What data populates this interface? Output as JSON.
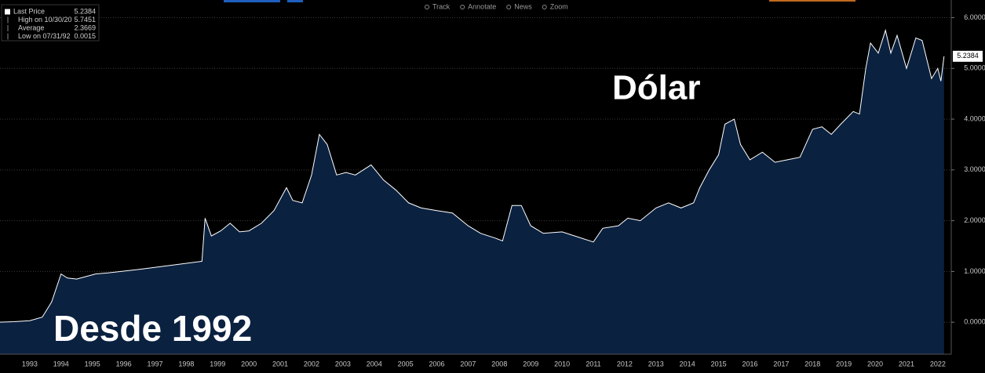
{
  "chart_data": {
    "type": "area",
    "toolbar": [
      "Track",
      "Annotate",
      "News",
      "Zoom"
    ],
    "stats": [
      {
        "label": "Last Price",
        "value": "5.2384"
      },
      {
        "label": "High on 10/30/20",
        "value": "5.7451"
      },
      {
        "label": "Average",
        "value": "2.3669"
      },
      {
        "label": "Low on 07/31/92",
        "value": "0.0015"
      }
    ],
    "annotations": [
      "Dólar",
      "Desde 1992"
    ],
    "series": [
      {
        "color": "#ffffff",
        "fill": "#0b2140",
        "x": [
          1992.55,
          1993.0,
          1993.5,
          1993.9,
          1994.2,
          1994.5,
          1994.7,
          1995.0,
          1995.3,
          1995.6,
          1996.0,
          1997.0,
          1998.0,
          1999.0,
          1999.1,
          1999.3,
          1999.6,
          1999.9,
          2000.2,
          2000.5,
          2000.9,
          2001.3,
          2001.7,
          2001.9,
          2002.2,
          2002.5,
          2002.75,
          2003.0,
          2003.3,
          2003.6,
          2003.9,
          2004.4,
          2004.8,
          2005.2,
          2005.6,
          2006.0,
          2006.5,
          2007.0,
          2007.5,
          2007.9,
          2008.4,
          2008.6,
          2008.9,
          2009.2,
          2009.5,
          2009.9,
          2010.5,
          2011.0,
          2011.5,
          2011.8,
          2012.3,
          2012.6,
          2013.0,
          2013.5,
          2013.9,
          2014.3,
          2014.7,
          2014.9,
          2015.2,
          2015.5,
          2015.7,
          2016.0,
          2016.2,
          2016.5,
          2016.9,
          2017.3,
          2017.7,
          2018.1,
          2018.5,
          2018.8,
          2019.1,
          2019.4,
          2019.8,
          2020.0,
          2020.2,
          2020.35,
          2020.6,
          2020.83,
          2021.0,
          2021.2,
          2021.5,
          2021.8,
          2022.0,
          2022.3,
          2022.5,
          2022.6,
          2022.7
        ],
        "values": [
          0.0015,
          0.01,
          0.03,
          0.1,
          0.4,
          0.95,
          0.87,
          0.85,
          0.9,
          0.95,
          0.97,
          1.04,
          1.12,
          1.2,
          2.05,
          1.7,
          1.8,
          1.95,
          1.78,
          1.8,
          1.95,
          2.2,
          2.65,
          2.4,
          2.35,
          2.9,
          3.7,
          3.5,
          2.9,
          2.95,
          2.9,
          3.1,
          2.8,
          2.6,
          2.35,
          2.25,
          2.2,
          2.15,
          1.9,
          1.75,
          1.65,
          1.6,
          2.3,
          2.3,
          1.9,
          1.75,
          1.78,
          1.68,
          1.58,
          1.85,
          1.9,
          2.05,
          2.0,
          2.25,
          2.35,
          2.25,
          2.35,
          2.65,
          3.0,
          3.3,
          3.9,
          4.0,
          3.5,
          3.2,
          3.35,
          3.15,
          3.2,
          3.25,
          3.8,
          3.85,
          3.7,
          3.9,
          4.15,
          4.1,
          5.0,
          5.5,
          5.3,
          5.75,
          5.3,
          5.65,
          5.0,
          5.6,
          5.55,
          4.8,
          5.0,
          4.75,
          5.2384
        ]
      }
    ],
    "xlim": [
      1992.55,
      2022.93
    ],
    "xticks": [
      {
        "value": 1993.5,
        "label": "1993"
      },
      {
        "value": 1994.5,
        "label": "1994"
      },
      {
        "value": 1995.5,
        "label": "1995"
      },
      {
        "value": 1996.5,
        "label": "1996"
      },
      {
        "value": 1997.5,
        "label": "1997"
      },
      {
        "value": 1998.5,
        "label": "1998"
      },
      {
        "value": 1999.5,
        "label": "1999"
      },
      {
        "value": 2000.5,
        "label": "2000"
      },
      {
        "value": 2001.5,
        "label": "2001"
      },
      {
        "value": 2002.5,
        "label": "2002"
      },
      {
        "value": 2003.5,
        "label": "2003"
      },
      {
        "value": 2004.5,
        "label": "2004"
      },
      {
        "value": 2005.5,
        "label": "2005"
      },
      {
        "value": 2006.5,
        "label": "2006"
      },
      {
        "value": 2007.5,
        "label": "2007"
      },
      {
        "value": 2008.5,
        "label": "2008"
      },
      {
        "value": 2009.5,
        "label": "2009"
      },
      {
        "value": 2010.5,
        "label": "2010"
      },
      {
        "value": 2011.5,
        "label": "2011"
      },
      {
        "value": 2012.5,
        "label": "2012"
      },
      {
        "value": 2013.5,
        "label": "2013"
      },
      {
        "value": 2014.5,
        "label": "2014"
      },
      {
        "value": 2015.5,
        "label": "2015"
      },
      {
        "value": 2016.5,
        "label": "2016"
      },
      {
        "value": 2017.5,
        "label": "2017"
      },
      {
        "value": 2018.5,
        "label": "2018"
      },
      {
        "value": 2019.5,
        "label": "2019"
      },
      {
        "value": 2020.5,
        "label": "2020"
      },
      {
        "value": 2021.5,
        "label": "2021"
      },
      {
        "value": 2022.5,
        "label": "2022"
      }
    ],
    "ylim": [
      -0.63,
      6.27
    ],
    "yticks": [
      {
        "value": 0,
        "label": "0.0000"
      },
      {
        "value": 1,
        "label": "1.0000"
      },
      {
        "value": 2,
        "label": "2.0000"
      },
      {
        "value": 3,
        "label": "3.0000"
      },
      {
        "value": 4,
        "label": "4.0000"
      },
      {
        "value": 5,
        "label": "5.0000"
      },
      {
        "value": 6,
        "label": "6.0000"
      }
    ],
    "grid": true
  }
}
